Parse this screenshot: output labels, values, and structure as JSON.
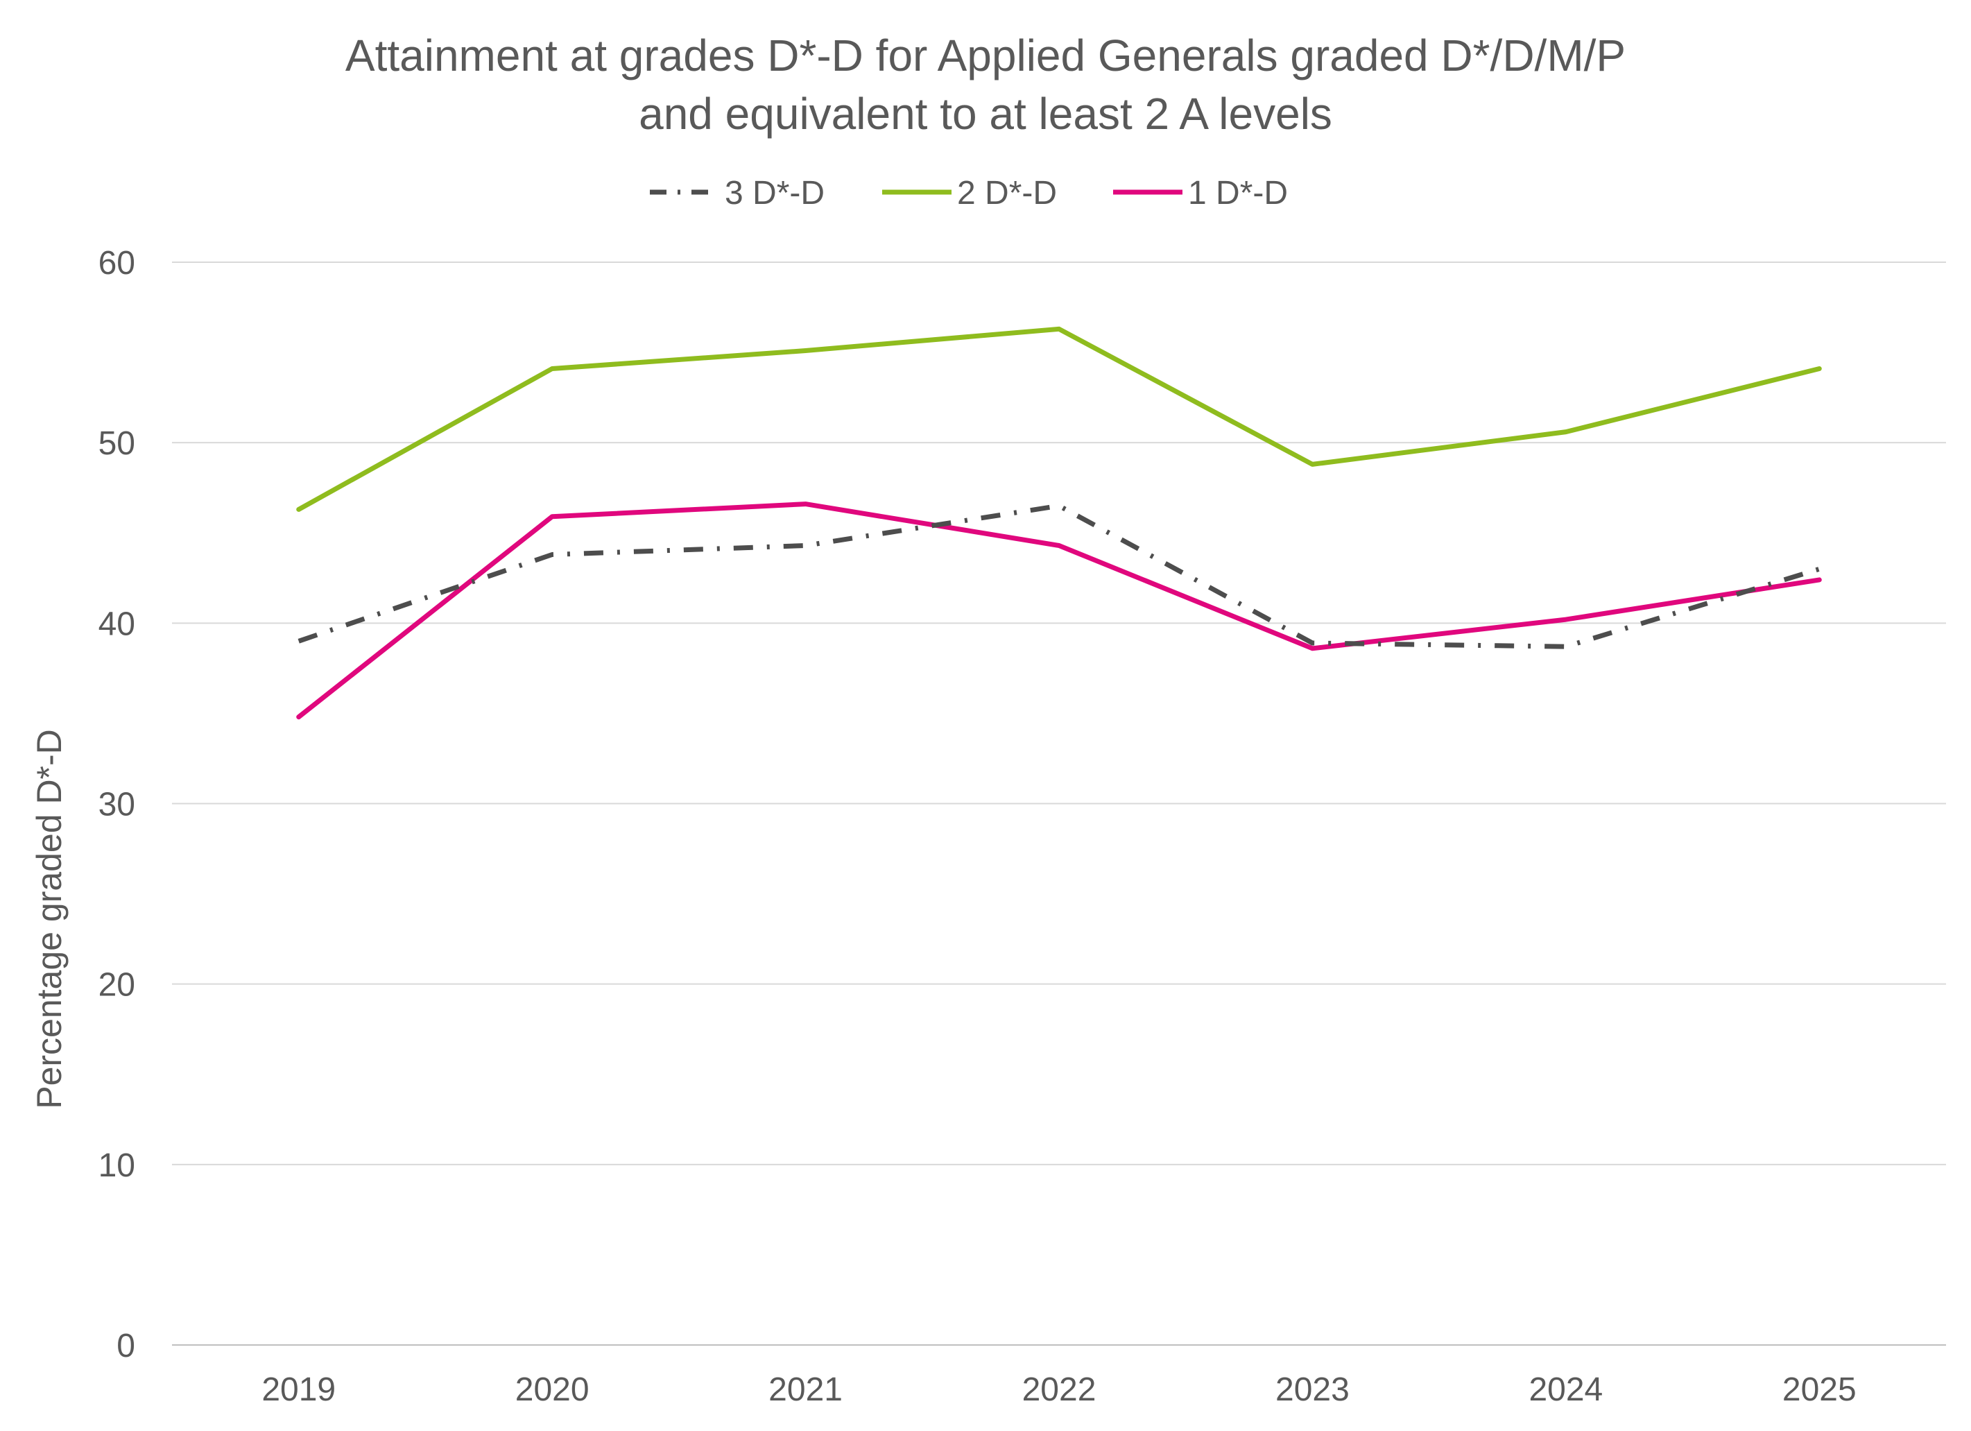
{
  "chart_data": {
    "type": "line",
    "title_lines": [
      "Attainment at grades D*-D for Applied Generals graded D*/D/M/P",
      "and equivalent to at least 2 A levels"
    ],
    "xlabel": "",
    "ylabel": "Percentage graded D*-D",
    "categories": [
      "2019",
      "2020",
      "2021",
      "2022",
      "2023",
      "2024",
      "2025"
    ],
    "ylim": [
      0,
      60
    ],
    "yticks": [
      0,
      10,
      20,
      30,
      40,
      50,
      60
    ],
    "grid": true,
    "legend_position": "top-center",
    "series": [
      {
        "name": "3 D*-D",
        "color": "#4d4d4d",
        "line_style": "dash-dot",
        "values": [
          39.0,
          43.8,
          44.3,
          46.5,
          38.9,
          38.7,
          43.0
        ]
      },
      {
        "name": "2 D*-D",
        "color": "#8fbc1e",
        "line_style": "solid",
        "values": [
          46.3,
          54.1,
          55.1,
          56.3,
          48.8,
          50.6,
          54.1
        ]
      },
      {
        "name": "1 D*-D",
        "color": "#e0077d",
        "line_style": "solid",
        "values": [
          34.8,
          45.9,
          46.6,
          44.3,
          38.6,
          40.2,
          42.4
        ]
      }
    ]
  }
}
